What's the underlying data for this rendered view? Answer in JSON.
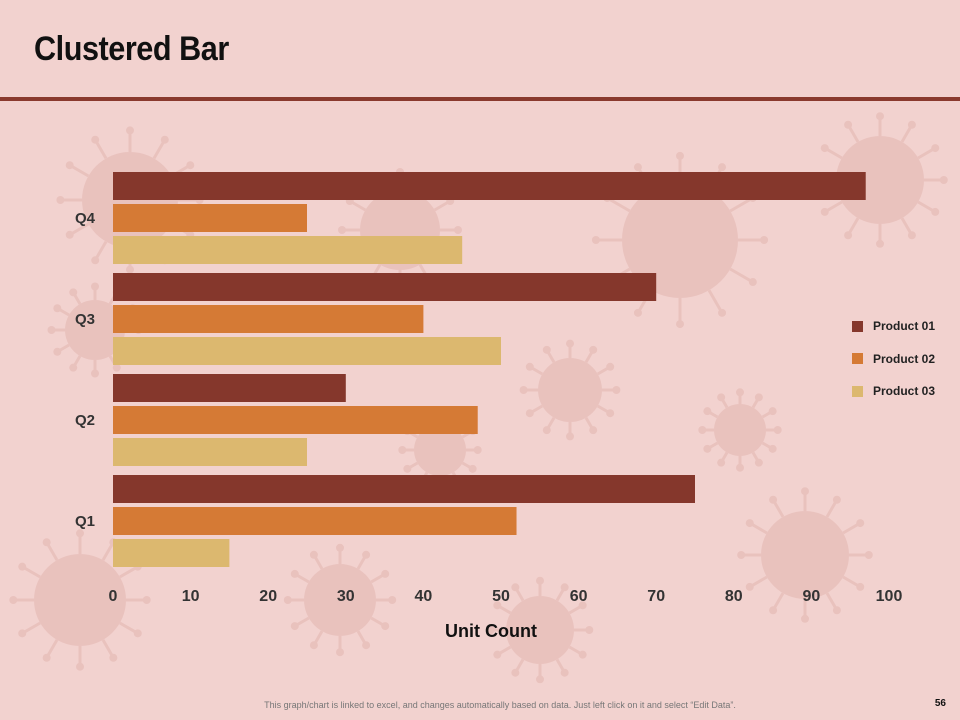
{
  "slide": {
    "title": "Clustered Bar",
    "footer_note": "This graph/chart is linked to excel, and changes automatically based on data. Just left click on it and select “Edit Data”.",
    "page_number": "56"
  },
  "colors": {
    "background": "#f2d2cf",
    "accent": "#8a3a2e",
    "decor": "#e3b5b0"
  },
  "chart_data": {
    "type": "bar",
    "orientation": "horizontal",
    "title": "",
    "xlabel": "Unit Count",
    "ylabel": "",
    "xlim": [
      0,
      100
    ],
    "x_ticks": [
      0,
      10,
      20,
      30,
      40,
      50,
      60,
      70,
      80,
      90,
      100
    ],
    "categories": [
      "Q1",
      "Q2",
      "Q3",
      "Q4"
    ],
    "series": [
      {
        "name": "Product 01",
        "color": "#85372c",
        "values": [
          75,
          30,
          70,
          97
        ]
      },
      {
        "name": "Product 02",
        "color": "#d57a35",
        "values": [
          52,
          47,
          40,
          25
        ]
      },
      {
        "name": "Product 03",
        "color": "#dcb86f",
        "values": [
          15,
          25,
          50,
          45
        ]
      }
    ],
    "legend": "right",
    "grid": false
  }
}
